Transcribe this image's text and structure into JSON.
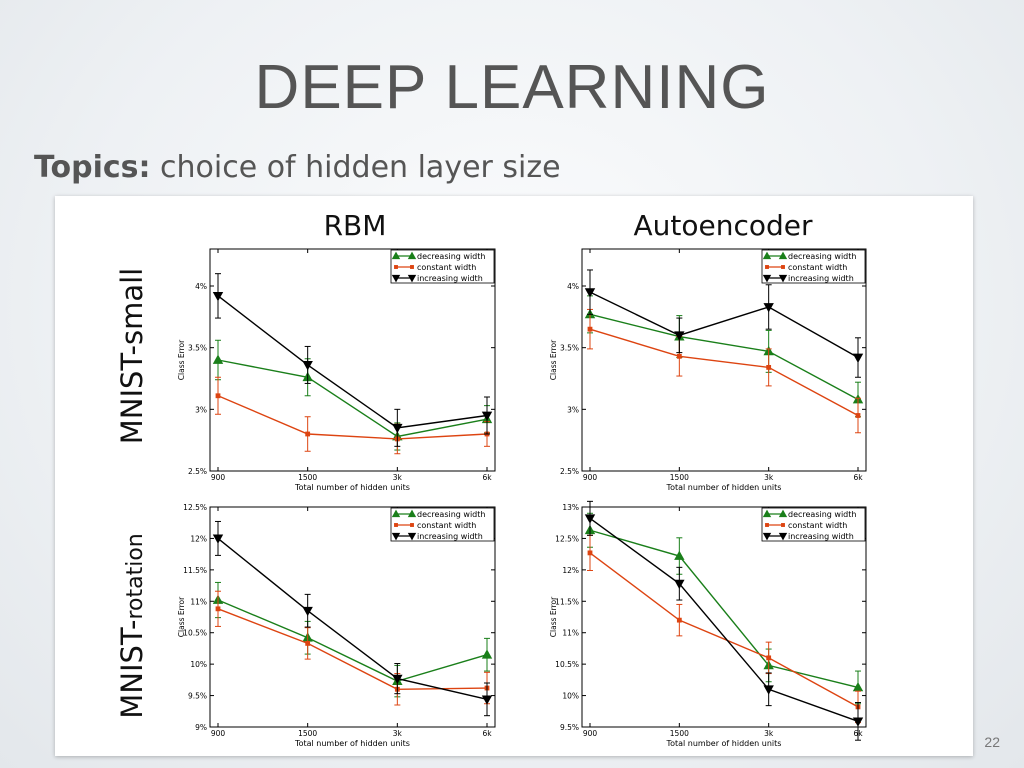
{
  "slide": {
    "title": "DEEP LEARNING",
    "topics_label": "Topics:",
    "topics_text": " choice of hidden layer size",
    "column_labels": [
      "RBM",
      "Autoencoder"
    ],
    "row_labels": [
      {
        "main": "MNIST-small",
        "sub": ""
      },
      {
        "main": "MNIST-",
        "sub": "rotation"
      }
    ],
    "page_number": "22"
  },
  "colors": {
    "decreasing": "#1a7f1a",
    "constant": "#dd4411",
    "increasing": "#000000"
  },
  "chart_data": [
    {
      "type": "line",
      "xlabel": "Total number of hidden units",
      "ylabel": "Class Error",
      "categories": [
        "900",
        "1500",
        "3k",
        "6k"
      ],
      "ylim": [
        2.5,
        4.3
      ],
      "yticks": [
        2.5,
        3,
        3.5,
        4
      ],
      "yticklabels": [
        "2.5%",
        "3%",
        "3.5%",
        "4%"
      ],
      "legend": "top-right",
      "series": [
        {
          "name": "decreasing width",
          "marker": "triangle-up",
          "values": [
            3.4,
            3.26,
            2.78,
            2.92
          ],
          "err": [
            0.16,
            0.15,
            0.11,
            0.11
          ]
        },
        {
          "name": "constant width",
          "marker": "square",
          "values": [
            3.11,
            2.8,
            2.76,
            2.8
          ],
          "err": [
            0.15,
            0.14,
            0.12,
            0.1
          ]
        },
        {
          "name": "increasing width",
          "marker": "triangle-down",
          "values": [
            3.92,
            3.36,
            2.85,
            2.95
          ],
          "err": [
            0.18,
            0.15,
            0.15,
            0.15
          ]
        }
      ]
    },
    {
      "type": "line",
      "xlabel": "Total number of hidden units",
      "ylabel": "Class Error",
      "categories": [
        "900",
        "1500",
        "3k",
        "6k"
      ],
      "ylim": [
        2.5,
        4.3
      ],
      "yticks": [
        2.5,
        3,
        3.5,
        4
      ],
      "yticklabels": [
        "2.5%",
        "3%",
        "3.5%",
        "4%"
      ],
      "legend": "top-right",
      "series": [
        {
          "name": "decreasing width",
          "marker": "triangle-up",
          "values": [
            3.77,
            3.59,
            3.47,
            3.08
          ],
          "err": [
            0.15,
            0.17,
            0.17,
            0.14
          ]
        },
        {
          "name": "constant width",
          "marker": "square",
          "values": [
            3.65,
            3.43,
            3.34,
            2.95
          ],
          "err": [
            0.16,
            0.16,
            0.15,
            0.14
          ]
        },
        {
          "name": "increasing width",
          "marker": "triangle-down",
          "values": [
            3.95,
            3.6,
            3.83,
            3.42
          ],
          "err": [
            0.18,
            0.14,
            0.18,
            0.16
          ]
        }
      ]
    },
    {
      "type": "line",
      "xlabel": "Total number of hidden units",
      "ylabel": "Class Error",
      "categories": [
        "900",
        "1500",
        "3k",
        "6k"
      ],
      "ylim": [
        9,
        12.5
      ],
      "yticks": [
        9,
        9.5,
        10,
        10.5,
        11,
        11.5,
        12,
        12.5
      ],
      "yticklabels": [
        "9%",
        "9.5%",
        "10%",
        "10.5%",
        "11%",
        "11.5%",
        "12%",
        "12.5%"
      ],
      "legend": "top-right",
      "series": [
        {
          "name": "decreasing width",
          "marker": "triangle-up",
          "values": [
            11.02,
            10.42,
            9.73,
            10.15
          ],
          "err": [
            0.28,
            0.26,
            0.25,
            0.26
          ]
        },
        {
          "name": "constant width",
          "marker": "square",
          "values": [
            10.88,
            10.33,
            9.6,
            9.62
          ],
          "err": [
            0.28,
            0.25,
            0.25,
            0.25
          ]
        },
        {
          "name": "increasing width",
          "marker": "triangle-down",
          "values": [
            12.0,
            10.85,
            9.77,
            9.44
          ],
          "err": [
            0.27,
            0.26,
            0.24,
            0.26
          ]
        }
      ]
    },
    {
      "type": "line",
      "xlabel": "Total number of hidden units",
      "ylabel": "Class Error",
      "categories": [
        "900",
        "1500",
        "3k",
        "6k"
      ],
      "ylim": [
        9.5,
        13
      ],
      "yticks": [
        9.5,
        10,
        10.5,
        11,
        11.5,
        12,
        12.5,
        13
      ],
      "yticklabels": [
        "9.5%",
        "10%",
        "10.5%",
        "11%",
        "11.5%",
        "12%",
        "12.5%",
        "13%"
      ],
      "legend": "top-right",
      "series": [
        {
          "name": "decreasing width",
          "marker": "triangle-up",
          "values": [
            12.63,
            12.22,
            10.48,
            10.13
          ],
          "err": [
            0.27,
            0.29,
            0.26,
            0.26
          ]
        },
        {
          "name": "constant width",
          "marker": "square",
          "values": [
            12.27,
            11.2,
            10.6,
            9.82
          ],
          "err": [
            0.28,
            0.25,
            0.25,
            0.25
          ]
        },
        {
          "name": "increasing width",
          "marker": "triangle-down",
          "values": [
            12.82,
            11.78,
            10.1,
            9.59
          ],
          "err": [
            0.27,
            0.26,
            0.26,
            0.3
          ]
        }
      ]
    }
  ]
}
